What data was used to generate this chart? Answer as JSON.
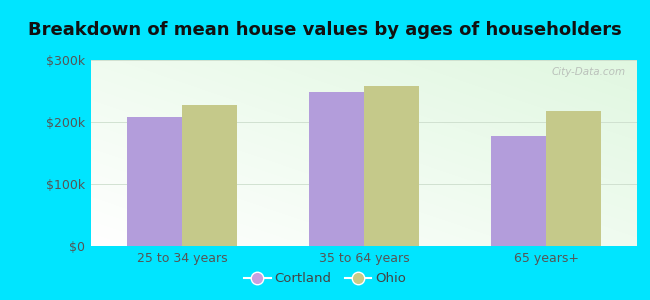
{
  "title": "Breakdown of mean house values by ages of householders",
  "categories": [
    "25 to 34 years",
    "35 to 64 years",
    "65 years+"
  ],
  "cortland_values": [
    208000,
    248000,
    178000
  ],
  "ohio_values": [
    228000,
    258000,
    218000
  ],
  "bar_color_cortland": "#b39ddb",
  "bar_color_ohio": "#c5c98a",
  "ylim": [
    0,
    300000
  ],
  "yticks": [
    0,
    100000,
    200000,
    300000
  ],
  "ytick_labels": [
    "$0",
    "$100k",
    "$200k",
    "$300k"
  ],
  "background_outer": "#00e5ff",
  "legend_labels": [
    "Cortland",
    "Ohio"
  ],
  "bar_width": 0.3,
  "title_fontsize": 13,
  "tick_fontsize": 9,
  "legend_fontsize": 9.5,
  "legend_marker_cortland": "#c9a0e0",
  "legend_marker_ohio": "#c8cb88"
}
